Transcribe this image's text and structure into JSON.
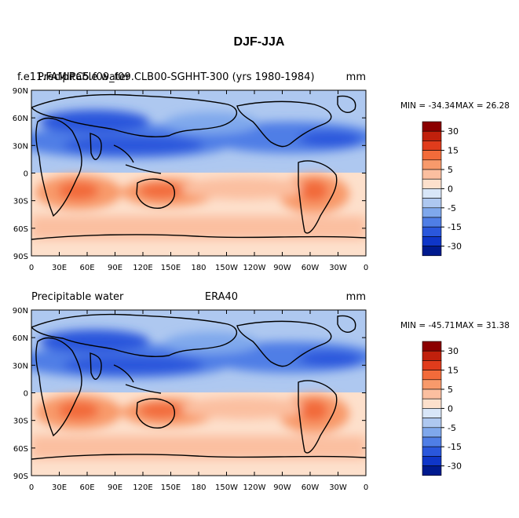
{
  "page": {
    "title": "DJF-JJA"
  },
  "panels": [
    {
      "left_label": "f.e11.FAMIPC5.f09_f09.CLB00-SGHHT-300 (yrs 1980-1984)",
      "left_label_overlay": "Precipitable water",
      "center_label": "",
      "unit": "mm",
      "min_label": "MIN = -34.34",
      "max_label": "MAX =  26.28"
    },
    {
      "left_label": "Precipitable water",
      "center_label": "ERA40",
      "unit": "mm",
      "min_label": "MIN = -45.71",
      "max_label": "MAX =  31.38"
    }
  ],
  "axes": {
    "lat_ticks": [
      "90N",
      "60N",
      "30N",
      "0",
      "30S",
      "60S",
      "90S"
    ],
    "lon_ticks": [
      "0",
      "30E",
      "60E",
      "90E",
      "120E",
      "150E",
      "180",
      "150W",
      "120W",
      "90W",
      "60W",
      "30W",
      "0"
    ]
  },
  "colorbar": {
    "labels": [
      "30",
      "15",
      "5",
      "0",
      "-5",
      "-15",
      "-30"
    ],
    "colors": [
      "#8b0000",
      "#c0200c",
      "#e03c1c",
      "#f26b3a",
      "#f89a6b",
      "#fbbfa0",
      "#fde0cc",
      "#d8e6f8",
      "#aec8f0",
      "#7fa8ec",
      "#4f7ee6",
      "#2a57dc",
      "#0f36c8",
      "#001a8f"
    ]
  }
}
